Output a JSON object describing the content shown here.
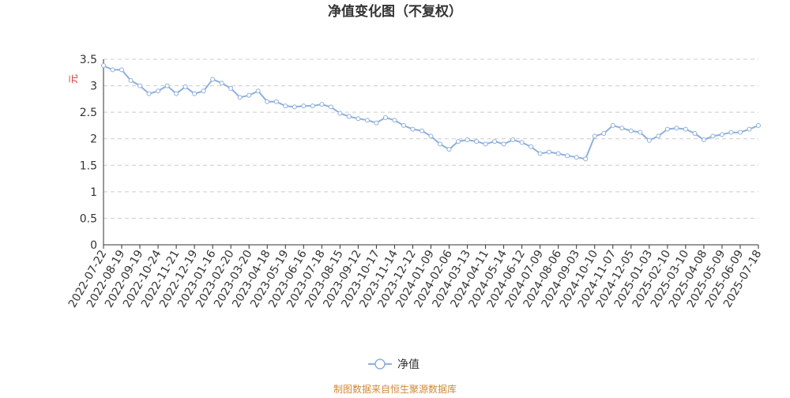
{
  "chart_data": {
    "type": "line",
    "title": "净值变化图（不复权）",
    "ylabel": "元",
    "footer": "制图数据来自恒生聚源数据库",
    "categories": [
      "2022-07-22",
      null,
      "2022-08-19",
      null,
      "2022-09-19",
      null,
      "2022-10-24",
      null,
      "2022-11-21",
      null,
      "2022-12-19",
      null,
      "2023-01-16",
      null,
      "2023-02-20",
      null,
      "2023-03-20",
      null,
      "2023-04-18",
      null,
      "2023-05-19",
      null,
      "2023-06-16",
      null,
      "2023-07-18",
      null,
      "2023-08-15",
      null,
      "2023-09-12",
      null,
      "2023-10-17",
      null,
      "2023-11-14",
      null,
      "2023-12-12",
      null,
      "2024-01-09",
      null,
      "2024-02-06",
      null,
      "2024-03-13",
      null,
      "2024-04-11",
      null,
      "2024-05-14",
      null,
      "2024-06-12",
      null,
      "2024-07-09",
      null,
      "2024-08-06",
      null,
      "2024-09-03",
      null,
      "2024-10-10",
      null,
      "2024-11-07",
      null,
      "2024-12-05",
      null,
      "2025-01-03",
      null,
      "2025-02-10",
      null,
      "2025-03-10",
      null,
      "2025-04-08",
      null,
      "2025-05-09",
      null,
      "2025-06-09",
      null,
      "2025-07-18"
    ],
    "series": [
      {
        "name": "净值",
        "color": "#8eb0dc",
        "values": [
          3.38,
          3.3,
          3.3,
          3.1,
          3.0,
          2.85,
          2.9,
          3.0,
          2.85,
          2.98,
          2.85,
          2.9,
          3.12,
          3.05,
          2.95,
          2.78,
          2.82,
          2.9,
          2.7,
          2.7,
          2.62,
          2.6,
          2.62,
          2.62,
          2.65,
          2.6,
          2.48,
          2.42,
          2.38,
          2.35,
          2.3,
          2.4,
          2.35,
          2.25,
          2.18,
          2.15,
          2.05,
          1.9,
          1.8,
          1.95,
          1.98,
          1.95,
          1.9,
          1.95,
          1.9,
          1.98,
          1.93,
          1.85,
          1.72,
          1.75,
          1.72,
          1.68,
          1.65,
          1.62,
          2.05,
          2.1,
          2.25,
          2.2,
          2.15,
          2.12,
          1.97,
          2.05,
          2.18,
          2.2,
          2.18,
          2.1,
          1.98,
          2.05,
          2.08,
          2.12,
          2.12,
          2.18,
          2.25
        ]
      }
    ],
    "ylim": [
      0,
      3.5
    ],
    "yticks": [
      0,
      0.5,
      1,
      1.5,
      2,
      2.5,
      3,
      3.5
    ],
    "grid": true
  }
}
